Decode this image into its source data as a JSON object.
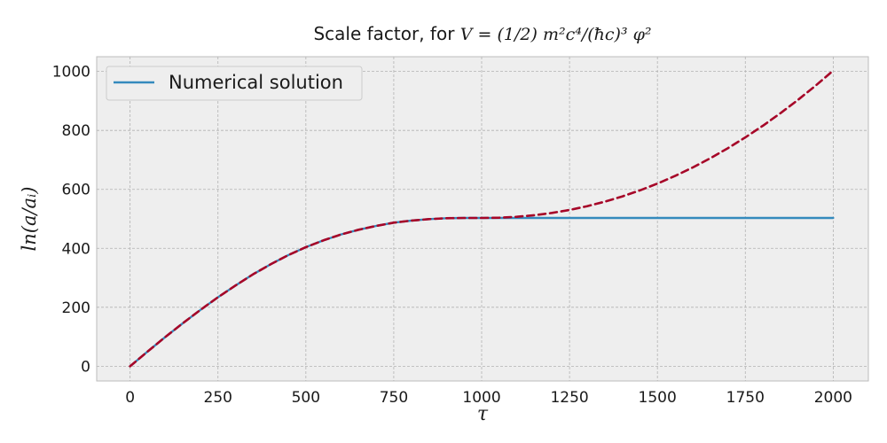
{
  "chart_data": {
    "type": "line",
    "title": {
      "prefix": "Scale factor, for ",
      "formula": "V = (1/2) m²c⁴/(ħc)³ φ²"
    },
    "xlabel": "τ",
    "ylabel": "ln(a/aᵢ)",
    "xlim": [
      -95,
      2100
    ],
    "ylim": [
      -50,
      1050
    ],
    "xticks": [
      0,
      250,
      500,
      750,
      1000,
      1250,
      1500,
      1750,
      2000
    ],
    "yticks": [
      0,
      200,
      400,
      600,
      800,
      1000
    ],
    "grid": true,
    "legend_position": "upper-left",
    "series": [
      {
        "name": "Numerical solution",
        "style": "solid",
        "color": "#348ABD",
        "x": [
          0,
          50,
          100,
          150,
          200,
          250,
          300,
          350,
          400,
          450,
          500,
          550,
          600,
          650,
          700,
          750,
          800,
          850,
          900,
          950,
          1000,
          1050,
          1100,
          1200,
          1300,
          1400,
          1500,
          1600,
          1700,
          1800,
          1900,
          2000
        ],
        "y": [
          0,
          50,
          99,
          146,
          191,
          234,
          274,
          312,
          346,
          377,
          404,
          427,
          447,
          463,
          476,
          487,
          494,
          499,
          502,
          503,
          503,
          503,
          503,
          503,
          503,
          503,
          503,
          503,
          503,
          503,
          503,
          503
        ]
      },
      {
        "name": "",
        "style": "dashed",
        "color": "#A60628",
        "x": [
          0,
          50,
          100,
          150,
          200,
          250,
          300,
          350,
          400,
          450,
          500,
          550,
          600,
          650,
          700,
          750,
          800,
          850,
          900,
          950,
          1000,
          1050,
          1100,
          1150,
          1200,
          1250,
          1300,
          1350,
          1400,
          1450,
          1500,
          1550,
          1600,
          1650,
          1700,
          1750,
          1800,
          1850,
          1900,
          1950,
          2000
        ],
        "y": [
          0,
          50,
          99,
          146,
          191,
          234,
          274,
          312,
          346,
          377,
          404,
          427,
          447,
          463,
          476,
          487,
          494,
          499,
          502,
          503,
          503,
          504,
          507,
          512,
          519,
          530,
          544,
          562,
          584,
          610,
          640,
          674,
          713,
          756,
          804,
          856,
          813,
          866,
          923,
          984,
          1003
        ]
      }
    ]
  }
}
